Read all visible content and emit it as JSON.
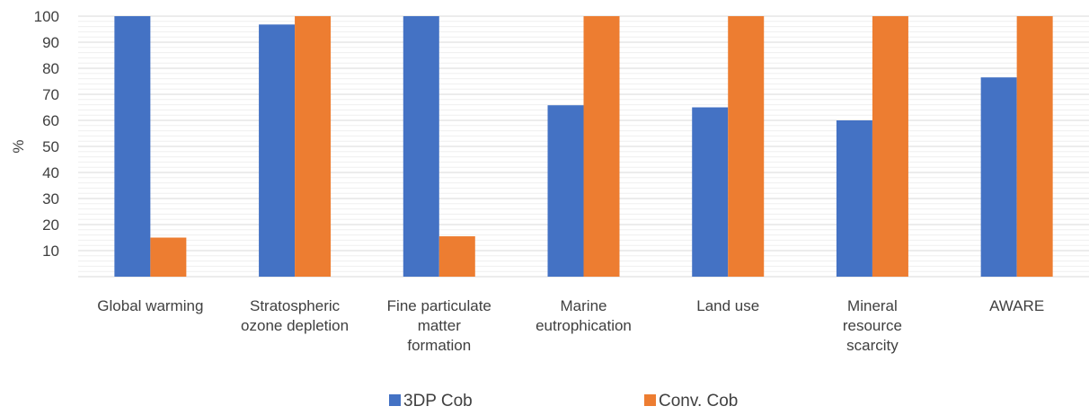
{
  "chart_data": {
    "type": "bar",
    "categories": [
      [
        "Global warming"
      ],
      [
        "Stratospheric",
        "ozone depletion"
      ],
      [
        "Fine particulate",
        "matter",
        "formation"
      ],
      [
        "Marine",
        "eutrophication"
      ],
      [
        "Land use"
      ],
      [
        "Mineral",
        "resource",
        "scarcity"
      ],
      [
        "AWARE"
      ]
    ],
    "series": [
      {
        "name": "3DP Cob",
        "color": "#4472C4",
        "values": [
          100,
          96.8,
          100,
          65.8,
          65,
          60,
          76.5
        ]
      },
      {
        "name": "Conv. Cob",
        "color": "#ED7D31",
        "values": [
          15,
          100,
          15.5,
          100,
          100,
          100,
          100
        ]
      }
    ],
    "ylabel": "%",
    "yticks": [
      10,
      20,
      30,
      40,
      50,
      60,
      70,
      80,
      90,
      100
    ],
    "ylim": [
      0,
      100
    ],
    "grid": true,
    "legend": "bottom"
  }
}
